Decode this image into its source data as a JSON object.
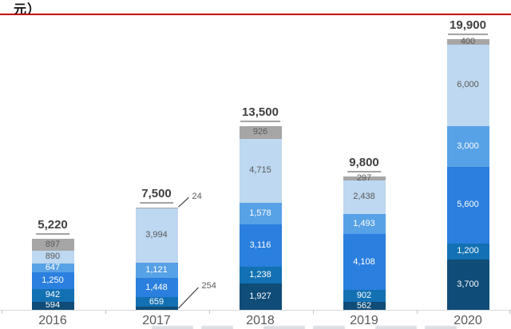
{
  "title_fragment": "元）",
  "header_rule_color": "#C00000",
  "x_axis": {
    "labels": [
      "2016",
      "2017",
      "2018",
      "2019",
      "2020"
    ]
  },
  "chart_data": {
    "type": "bar",
    "stacked": true,
    "title": "",
    "xlabel": "",
    "ylabel": "",
    "ylim": [
      0,
      19900
    ],
    "gridlines": false,
    "value_labels": "inside",
    "categories": [
      "2016",
      "2017",
      "2018",
      "2019",
      "2020"
    ],
    "series": [
      {
        "name": "navy",
        "color": "#0F4C78",
        "label_color": "#FFFFFF",
        "values": [
          594,
          254,
          1927,
          562,
          3700
        ]
      },
      {
        "name": "dark-blue",
        "color": "#1371B3",
        "label_color": "#FFFFFF",
        "values": [
          942,
          659,
          1238,
          902,
          1200
        ]
      },
      {
        "name": "blue",
        "color": "#2B7FDE",
        "label_color": "#FFFFFF",
        "values": [
          1250,
          1448,
          3116,
          4108,
          5600
        ]
      },
      {
        "name": "medium-blue",
        "color": "#57A1E6",
        "label_color": "#FFFFFF",
        "values": [
          647,
          1121,
          1578,
          1493,
          3000
        ]
      },
      {
        "name": "light-blue",
        "color": "#BDD8F0",
        "label_color": "#595959",
        "values": [
          890,
          3994,
          4715,
          2438,
          6000
        ]
      },
      {
        "name": "gray",
        "color": "#A6A6A6",
        "label_color": "#595959",
        "values": [
          897,
          24,
          926,
          297,
          400
        ]
      }
    ],
    "totals": [
      "5,220",
      "7,500",
      "13,500",
      "9,800",
      "19,900"
    ],
    "annotations": [
      {
        "category": "2017",
        "series": "gray",
        "text": "24",
        "side": "top"
      },
      {
        "category": "2017",
        "series": "navy",
        "text": "254",
        "side": "bottom"
      }
    ]
  }
}
